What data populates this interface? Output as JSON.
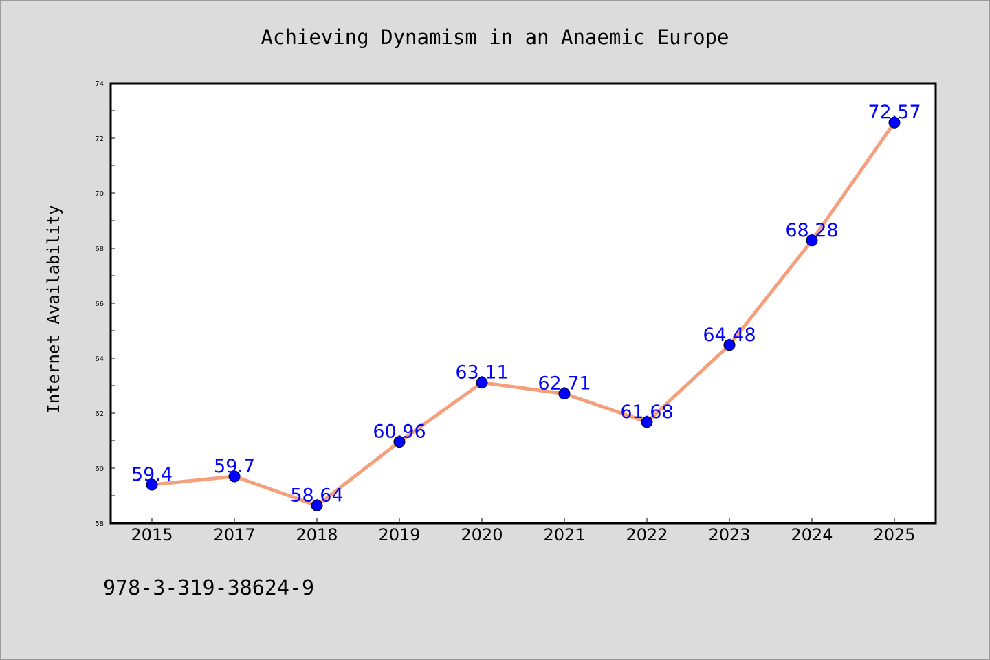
{
  "chart_data": {
    "type": "line",
    "title": "Achieving Dynamism in an Anaemic Europe",
    "xlabel": "",
    "ylabel": "Internet Availability",
    "categories": [
      "2015",
      "2017",
      "2018",
      "2019",
      "2020",
      "2021",
      "2022",
      "2023",
      "2024",
      "2025"
    ],
    "series": [
      {
        "values": [
          59.4,
          59.7,
          58.64,
          60.96,
          63.11,
          62.71,
          61.68,
          64.48,
          68.28,
          72.57
        ],
        "data_labels": [
          "59.4",
          "59.7",
          "58.64",
          "60.96",
          "63.11",
          "62.71",
          "61.68",
          "64.48",
          "68.28",
          "72.57"
        ]
      }
    ],
    "ylim": [
      58,
      74
    ],
    "yticks": [
      "58",
      "60",
      "62",
      "64",
      "66",
      "68",
      "70",
      "72",
      "74"
    ],
    "grid": false,
    "legend": "none",
    "colors": {
      "line": "#f4a07c",
      "marker": "#0000ff",
      "label": "#0000ff",
      "background": "#dcdcdc",
      "plot_background": "#ffffff"
    }
  },
  "footer_text": "978-3-319-38624-9"
}
